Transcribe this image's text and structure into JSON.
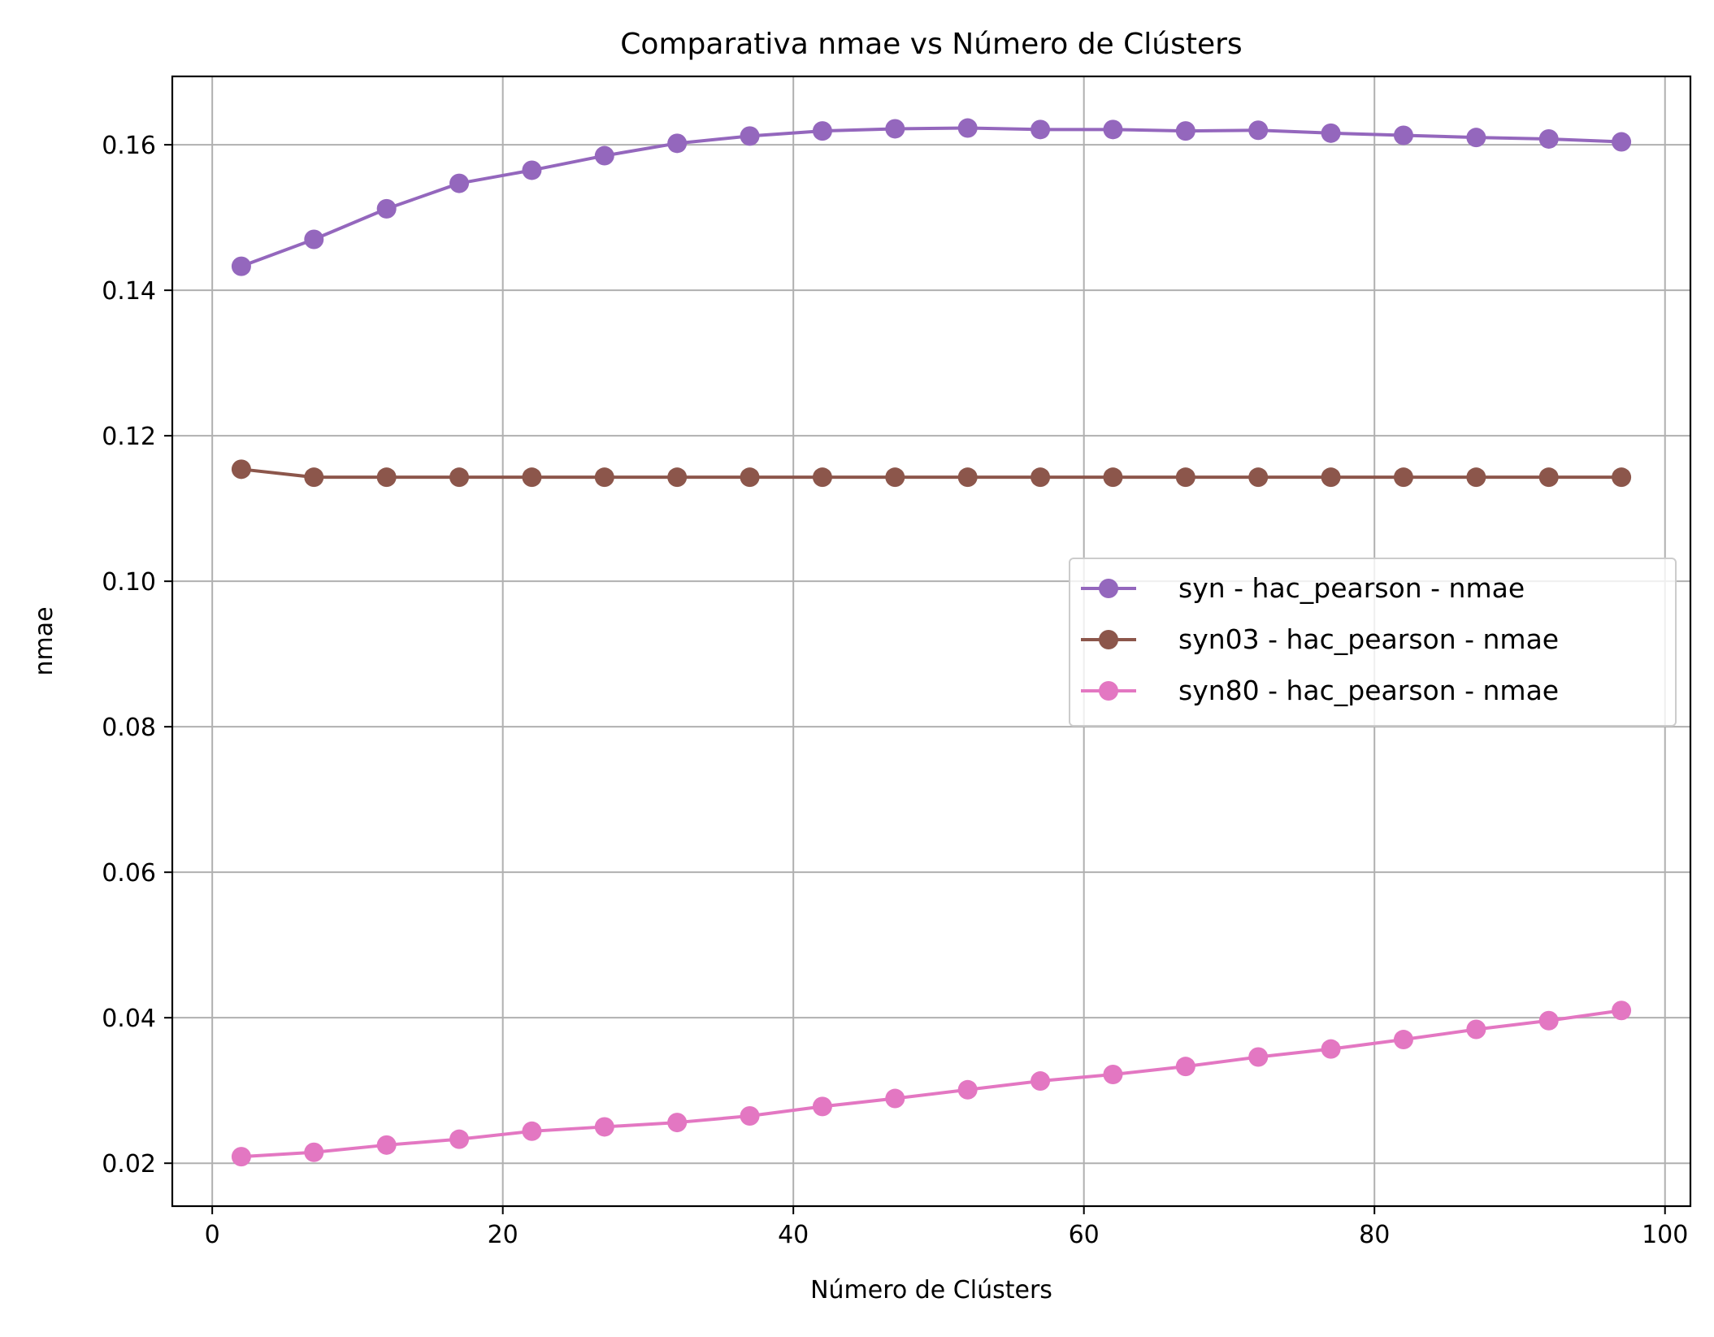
{
  "chart_data": {
    "type": "line",
    "title": "Comparativa nmae vs Número de Clústers",
    "xlabel": "Número de Clústers",
    "ylabel": "nmae",
    "xlim": [
      -2.75,
      101.75
    ],
    "ylim": [
      0.0141,
      0.1694
    ],
    "xticks": [
      0,
      20,
      40,
      60,
      80,
      100
    ],
    "xtick_labels": [
      "0",
      "20",
      "40",
      "60",
      "80",
      "100"
    ],
    "yticks": [
      0.02,
      0.04,
      0.06,
      0.08,
      0.1,
      0.12,
      0.14,
      0.16
    ],
    "ytick_labels": [
      "0.02",
      "0.04",
      "0.06",
      "0.08",
      "0.10",
      "0.12",
      "0.14",
      "0.16"
    ],
    "grid": true,
    "legend_position": "center-right",
    "x": [
      2,
      7,
      12,
      17,
      22,
      27,
      32,
      37,
      42,
      47,
      52,
      57,
      62,
      67,
      72,
      77,
      82,
      87,
      92,
      97
    ],
    "series": [
      {
        "name": "syn - hac_pearson - nmae",
        "color": "#9467bd",
        "marker": "circle",
        "values": [
          0.1433,
          0.147,
          0.1512,
          0.1547,
          0.1565,
          0.1585,
          0.1602,
          0.1612,
          0.1619,
          0.1622,
          0.1623,
          0.1621,
          0.1621,
          0.1619,
          0.162,
          0.1616,
          0.1613,
          0.161,
          0.1608,
          0.1604
        ]
      },
      {
        "name": "syn03 - hac_pearson - nmae",
        "color": "#8c564b",
        "marker": "circle",
        "values": [
          0.1154,
          0.1143,
          0.1143,
          0.1143,
          0.1143,
          0.1143,
          0.1143,
          0.1143,
          0.1143,
          0.1143,
          0.1143,
          0.1143,
          0.1143,
          0.1143,
          0.1143,
          0.1143,
          0.1143,
          0.1143,
          0.1143,
          0.1143
        ]
      },
      {
        "name": "syn80 - hac_pearson - nmae",
        "color": "#e377c2",
        "marker": "circle",
        "values": [
          0.0209,
          0.0215,
          0.0225,
          0.0233,
          0.0244,
          0.025,
          0.0256,
          0.0265,
          0.0278,
          0.0289,
          0.0301,
          0.0313,
          0.0322,
          0.0333,
          0.0346,
          0.0357,
          0.037,
          0.0384,
          0.0396,
          0.041
        ]
      }
    ]
  }
}
